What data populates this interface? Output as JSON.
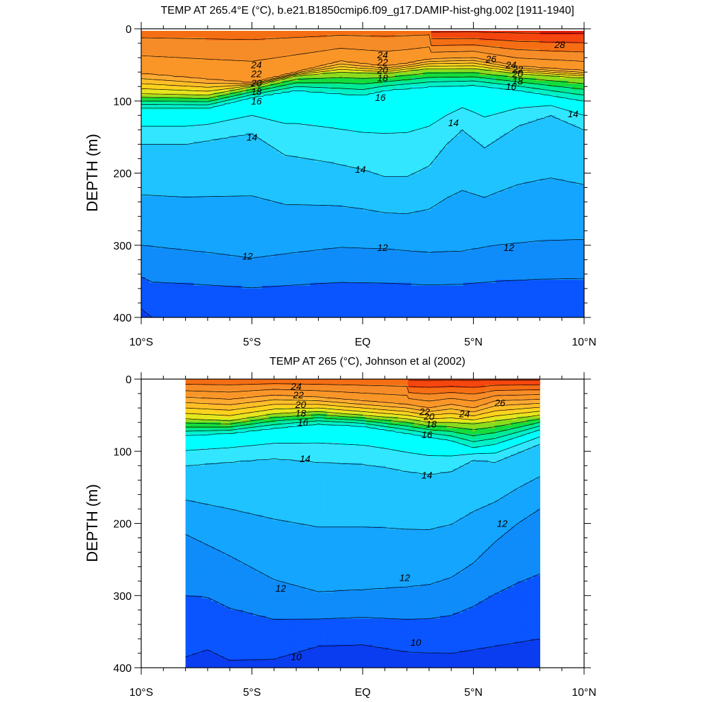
{
  "chart_data": [
    {
      "type": "contour",
      "title": "TEMP AT 265.4°E (°C), b.e21.B1850cmip6.f09_g17.DAMIP-hist-ghg.002 [1911-1940]",
      "ylabel": "DEPTH (m)",
      "xlabel": "",
      "x_ticks": [
        "10°S",
        "5°S",
        "EQ",
        "5°N",
        "10°N"
      ],
      "y_ticks": [
        "0",
        "100",
        "200",
        "300",
        "400"
      ],
      "xlim": [
        -10,
        10
      ],
      "ylim": [
        400,
        0
      ],
      "y_inverted": true,
      "contour_interval": 1,
      "color_scale": "blue (≈9°C) → cyan (≈14°C) → green (≈18°C) → yellow/orange (≈24°C) → red (≈28°C)",
      "data_extent": [
        -10,
        10
      ],
      "isotherms": [
        {
          "level": 24,
          "x": [
            -10,
            -7,
            -5,
            -3,
            -1,
            1,
            2,
            3,
            5,
            7,
            10
          ],
          "depth": [
            62,
            70,
            75,
            60,
            45,
            52,
            48,
            42,
            40,
            52,
            58
          ]
        },
        {
          "level": 20,
          "x": [
            -10,
            -7,
            -5,
            -3,
            -1,
            1,
            3,
            5,
            7,
            10
          ],
          "depth": [
            90,
            92,
            80,
            65,
            60,
            62,
            55,
            55,
            62,
            68
          ]
        },
        {
          "level": 16,
          "x": [
            -10,
            -7,
            -5,
            -3,
            -1,
            0,
            1,
            3,
            5,
            7,
            10
          ],
          "depth": [
            110,
            110,
            95,
            85,
            90,
            92,
            85,
            80,
            78,
            85,
            100
          ]
        },
        {
          "level": 14,
          "x": [
            -10,
            -8,
            -6,
            -5,
            -3.5,
            -1.5,
            0,
            1,
            2,
            3,
            3.8,
            4.5,
            5.5,
            7,
            8.5,
            10
          ],
          "depth": [
            160,
            160,
            150,
            145,
            175,
            185,
            195,
            205,
            205,
            190,
            160,
            140,
            165,
            135,
            120,
            140
          ]
        },
        {
          "level": 12,
          "x": [
            -10,
            -7,
            -5,
            -3,
            -1,
            1,
            3,
            4.5,
            6,
            8,
            10
          ],
          "depth": [
            300,
            310,
            318,
            310,
            303,
            305,
            310,
            308,
            300,
            294,
            292
          ]
        },
        {
          "level": 10,
          "x": [
            -10,
            -9.5
          ],
          "depth": [
            388,
            400
          ]
        }
      ],
      "contour_labels": [
        {
          "text": "28",
          "x": 8.9,
          "depth": 22
        },
        {
          "text": "26",
          "x": 5.8,
          "depth": 42
        },
        {
          "text": "24",
          "x": -4.8,
          "depth": 50
        },
        {
          "text": "22",
          "x": -4.8,
          "depth": 62
        },
        {
          "text": "20",
          "x": -4.8,
          "depth": 75
        },
        {
          "text": "18",
          "x": -4.8,
          "depth": 87
        },
        {
          "text": "16",
          "x": -4.8,
          "depth": 100
        },
        {
          "text": "24",
          "x": 0.9,
          "depth": 36
        },
        {
          "text": "22",
          "x": 0.9,
          "depth": 46
        },
        {
          "text": "20",
          "x": 0.9,
          "depth": 57
        },
        {
          "text": "18",
          "x": 0.9,
          "depth": 68
        },
        {
          "text": "16",
          "x": 0.8,
          "depth": 95
        },
        {
          "text": "24",
          "x": 6.7,
          "depth": 50
        },
        {
          "text": "22",
          "x": 7.0,
          "depth": 56
        },
        {
          "text": "20",
          "x": 7.0,
          "depth": 62
        },
        {
          "text": "18",
          "x": 7.0,
          "depth": 72
        },
        {
          "text": "16",
          "x": 6.7,
          "depth": 80
        },
        {
          "text": "14",
          "x": -5.0,
          "depth": 150
        },
        {
          "text": "14",
          "x": -0.1,
          "depth": 195
        },
        {
          "text": "14",
          "x": 4.1,
          "depth": 130
        },
        {
          "text": "14",
          "x": 9.5,
          "depth": 118
        },
        {
          "text": "12",
          "x": -5.2,
          "depth": 315
        },
        {
          "text": "12",
          "x": 0.9,
          "depth": 303
        },
        {
          "text": "12",
          "x": 6.6,
          "depth": 303
        }
      ]
    },
    {
      "type": "contour",
      "title": "TEMP AT 265 (°C), Johnson et al (2002)",
      "ylabel": "DEPTH (m)",
      "xlabel": "",
      "x_ticks": [
        "10°S",
        "5°S",
        "EQ",
        "5°N",
        "10°N"
      ],
      "y_ticks": [
        "0",
        "100",
        "200",
        "300",
        "400"
      ],
      "xlim": [
        -10,
        10
      ],
      "ylim": [
        400,
        0
      ],
      "y_inverted": true,
      "contour_interval": 1,
      "data_extent": [
        -8,
        8
      ],
      "isotherms": [
        {
          "level": 24,
          "x": [
            -8,
            -6,
            -4,
            -2,
            0,
            2,
            3,
            4,
            5,
            6,
            8
          ],
          "depth": [
            25,
            28,
            22,
            25,
            30,
            35,
            40,
            35,
            40,
            30,
            28
          ]
        },
        {
          "level": 20,
          "x": [
            -8,
            -6,
            -4,
            -2,
            0,
            2,
            3,
            4,
            5,
            6,
            8
          ],
          "depth": [
            55,
            58,
            48,
            45,
            50,
            55,
            60,
            60,
            62,
            58,
            50
          ]
        },
        {
          "level": 16,
          "x": [
            -8,
            -6,
            -4,
            -2,
            0,
            2,
            3,
            4,
            5,
            6,
            8
          ],
          "depth": [
            78,
            75,
            68,
            62,
            65,
            75,
            80,
            85,
            95,
            90,
            70
          ]
        },
        {
          "level": 14,
          "x": [
            -8,
            -6,
            -4,
            -2,
            0,
            1,
            2,
            3,
            4,
            5,
            6,
            8
          ],
          "depth": [
            120,
            115,
            110,
            115,
            118,
            122,
            128,
            132,
            128,
            112,
            115,
            90
          ]
        },
        {
          "level": 12,
          "x": [
            -8,
            -6,
            -4,
            -2,
            0,
            1,
            2,
            3,
            4,
            5,
            6,
            7,
            8
          ],
          "depth": [
            215,
            245,
            278,
            295,
            292,
            290,
            288,
            285,
            275,
            255,
            225,
            200,
            180
          ]
        },
        {
          "level": 10,
          "x": [
            -8,
            -7,
            -6,
            -4,
            -2,
            0,
            2,
            4,
            6,
            8
          ],
          "depth": [
            385,
            375,
            390,
            388,
            370,
            368,
            378,
            380,
            370,
            360
          ]
        }
      ],
      "contour_labels": [
        {
          "text": "24",
          "x": -3.0,
          "depth": 10
        },
        {
          "text": "22",
          "x": -2.9,
          "depth": 22
        },
        {
          "text": "20",
          "x": -2.8,
          "depth": 35
        },
        {
          "text": "18",
          "x": -2.8,
          "depth": 47
        },
        {
          "text": "16",
          "x": -2.7,
          "depth": 60
        },
        {
          "text": "22",
          "x": 2.8,
          "depth": 45
        },
        {
          "text": "20",
          "x": 3.0,
          "depth": 52
        },
        {
          "text": "18",
          "x": 3.1,
          "depth": 62
        },
        {
          "text": "16",
          "x": 2.9,
          "depth": 77
        },
        {
          "text": "24",
          "x": 4.6,
          "depth": 48
        },
        {
          "text": "26",
          "x": 6.2,
          "depth": 33
        },
        {
          "text": "14",
          "x": -2.6,
          "depth": 110
        },
        {
          "text": "14",
          "x": 2.9,
          "depth": 133
        },
        {
          "text": "12",
          "x": 6.3,
          "depth": 200
        },
        {
          "text": "12",
          "x": -3.7,
          "depth": 290
        },
        {
          "text": "12",
          "x": 1.9,
          "depth": 275
        },
        {
          "text": "10",
          "x": -3.0,
          "depth": 385
        },
        {
          "text": "10",
          "x": 2.4,
          "depth": 365
        }
      ]
    }
  ]
}
